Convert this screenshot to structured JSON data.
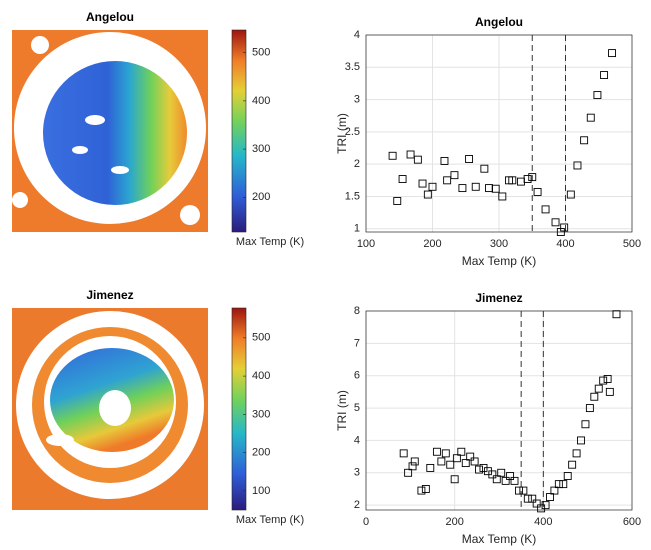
{
  "chart_data": [
    {
      "type": "heatmap",
      "title": "Angelou",
      "colorbar_label": "Max Temp (K)",
      "clim": [
        128,
        547
      ],
      "cticks": [
        200,
        300,
        400,
        500
      ]
    },
    {
      "type": "scatter",
      "title": "Angelou",
      "xlabel": "Max Temp (K)",
      "ylabel": "TRI (m)",
      "xlim": [
        100,
        500
      ],
      "ylim": [
        0.95,
        4
      ],
      "xticks": [
        100,
        200,
        300,
        400,
        500
      ],
      "yticks": [
        1,
        1.5,
        2,
        2.5,
        3,
        3.5,
        4
      ],
      "grid": true,
      "vlines": [
        350,
        400
      ],
      "color": "#000000",
      "x": [
        140,
        147,
        155,
        167,
        178,
        185,
        193,
        200,
        218,
        222,
        233,
        245,
        255,
        265,
        278,
        285,
        295,
        305,
        315,
        320,
        333,
        343,
        350,
        358,
        370,
        385,
        393,
        398,
        408,
        418,
        428,
        438,
        448,
        458,
        470
      ],
      "values": [
        2.13,
        1.43,
        1.77,
        2.15,
        2.07,
        1.7,
        1.53,
        1.65,
        2.05,
        1.75,
        1.83,
        1.63,
        2.08,
        1.65,
        1.93,
        1.63,
        1.62,
        1.5,
        1.75,
        1.75,
        1.73,
        1.77,
        1.8,
        1.57,
        1.3,
        1.1,
        0.95,
        1.02,
        1.53,
        1.98,
        2.37,
        2.72,
        3.07,
        3.38,
        3.72
      ]
    },
    {
      "type": "heatmap",
      "title": "Jimenez",
      "colorbar_label": "Max Temp (K)",
      "clim": [
        50,
        578
      ],
      "cticks": [
        100,
        200,
        300,
        400,
        500
      ]
    },
    {
      "type": "scatter",
      "title": "Jimenez",
      "xlabel": "Max Temp (K)",
      "ylabel": "TRI (m)",
      "xlim": [
        0,
        600
      ],
      "ylim": [
        1.85,
        8
      ],
      "xticks": [
        0,
        200,
        400,
        600
      ],
      "yticks": [
        2,
        3,
        4,
        5,
        6,
        7,
        8
      ],
      "grid": true,
      "vlines": [
        350,
        400
      ],
      "color": "#000000",
      "x": [
        85,
        95,
        105,
        110,
        125,
        135,
        145,
        160,
        170,
        180,
        190,
        200,
        205,
        215,
        225,
        235,
        245,
        255,
        265,
        275,
        285,
        295,
        305,
        315,
        325,
        335,
        345,
        355,
        365,
        375,
        385,
        395,
        405,
        415,
        425,
        435,
        445,
        455,
        465,
        475,
        485,
        495,
        505,
        515,
        525,
        535,
        545,
        550,
        565
      ],
      "values": [
        3.6,
        3.0,
        3.2,
        3.35,
        2.45,
        2.5,
        3.15,
        3.65,
        3.35,
        3.6,
        3.25,
        2.8,
        3.45,
        3.65,
        3.3,
        3.5,
        3.35,
        3.1,
        3.15,
        3.05,
        2.95,
        2.8,
        3.0,
        2.75,
        2.9,
        2.75,
        2.45,
        2.45,
        2.2,
        2.2,
        2.05,
        1.9,
        2.0,
        2.25,
        2.45,
        2.65,
        2.65,
        2.9,
        3.25,
        3.6,
        4.0,
        4.5,
        5.0,
        5.35,
        5.6,
        5.85,
        5.9,
        5.5,
        7.9
      ]
    }
  ]
}
